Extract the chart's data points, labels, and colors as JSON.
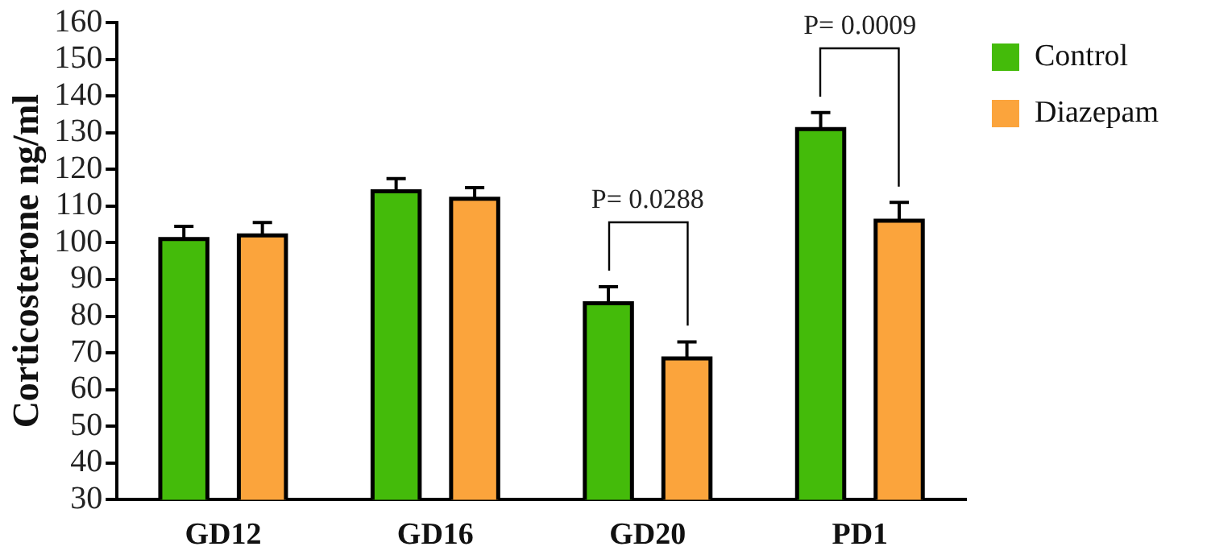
{
  "chart_data": {
    "type": "bar",
    "ylabel": "Corticosterone ng/ml",
    "categories": [
      "GD12",
      "GD16",
      "GD20",
      "PD1"
    ],
    "series": [
      {
        "name": "Control",
        "color": "#44bb0a",
        "values": [
          101,
          114,
          83.5,
          131
        ],
        "errors": [
          3.5,
          3.5,
          4.5,
          4.5
        ]
      },
      {
        "name": "Diazepam",
        "color": "#fba43c",
        "values": [
          102,
          112,
          68.5,
          106
        ],
        "errors": [
          3.5,
          3,
          4.5,
          5
        ]
      }
    ],
    "ylim": [
      30,
      160
    ],
    "yticks": [
      30,
      40,
      50,
      60,
      70,
      80,
      90,
      100,
      110,
      120,
      130,
      140,
      150,
      160
    ],
    "annotations": [
      "P= 0.0288",
      "P= 0.0009"
    ],
    "legend": "top right",
    "grid": false
  }
}
